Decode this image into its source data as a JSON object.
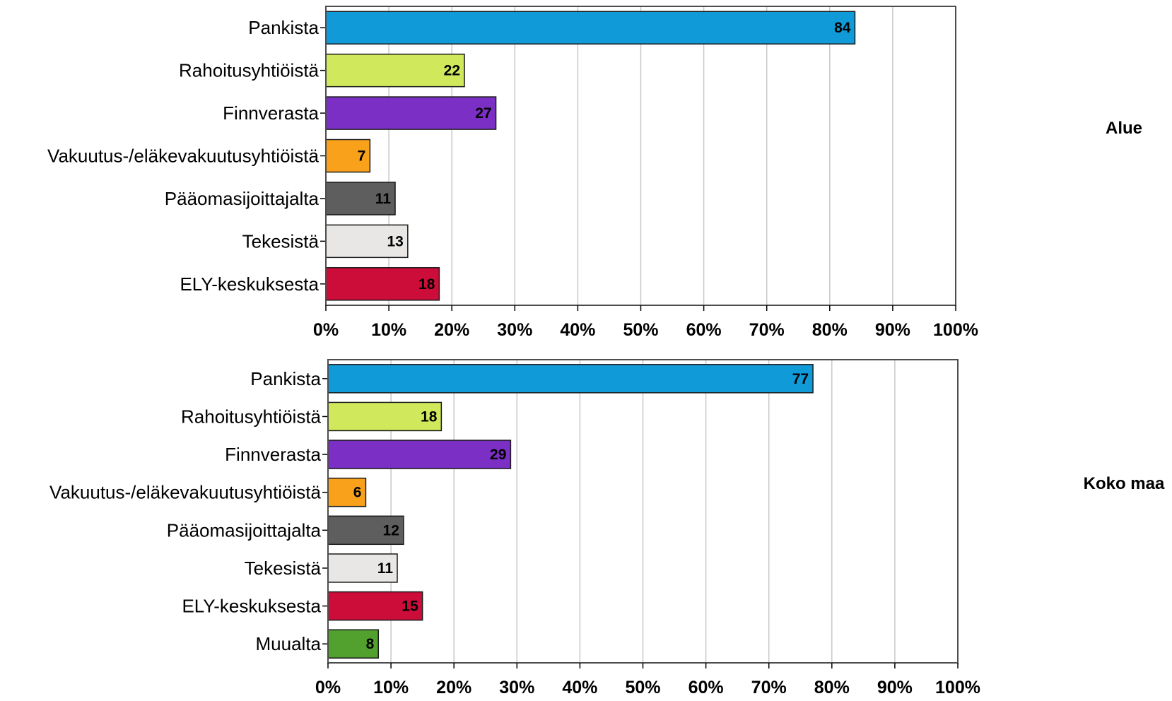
{
  "chart_data": [
    {
      "type": "bar",
      "orientation": "horizontal",
      "panel_label": "Alue",
      "categories": [
        "Pankista",
        "Rahoitusyhtiöistä",
        "Finnverasta",
        "Vakuutus-/eläkevakuutusyhtiöistä",
        "Pääomasijoittajalta",
        "Tekesistä",
        "ELY-keskuksesta"
      ],
      "values": [
        84,
        22,
        27,
        7,
        11,
        13,
        18
      ],
      "bar_colors": [
        "#109ad8",
        "#cfe85c",
        "#7b2fc4",
        "#f9a11b",
        "#5e5e5e",
        "#e9e7e6",
        "#cc0d3a"
      ],
      "xlim": [
        0,
        100
      ],
      "x_ticks": [
        "0%",
        "10%",
        "20%",
        "30%",
        "40%",
        "50%",
        "60%",
        "70%",
        "80%",
        "90%",
        "100%"
      ],
      "grid": true
    },
    {
      "type": "bar",
      "orientation": "horizontal",
      "panel_label": "Koko maa",
      "categories": [
        "Pankista",
        "Rahoitusyhtiöistä",
        "Finnverasta",
        "Vakuutus-/eläkevakuutusyhtiöistä",
        "Pääomasijoittajalta",
        "Tekesistä",
        "ELY-keskuksesta",
        "Muualta"
      ],
      "values": [
        77,
        18,
        29,
        6,
        12,
        11,
        15,
        8
      ],
      "bar_colors": [
        "#109ad8",
        "#cfe85c",
        "#7b2fc4",
        "#f9a11b",
        "#5e5e5e",
        "#e9e7e6",
        "#cc0d3a",
        "#52a02e"
      ],
      "xlim": [
        0,
        100
      ],
      "x_ticks": [
        "0%",
        "10%",
        "20%",
        "30%",
        "40%",
        "50%",
        "60%",
        "70%",
        "80%",
        "90%",
        "100%"
      ],
      "grid": true
    }
  ]
}
